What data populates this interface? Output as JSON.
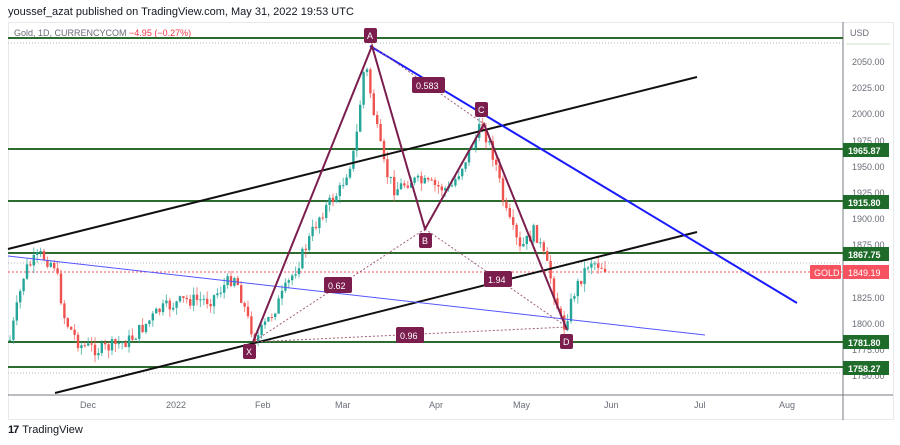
{
  "header": {
    "published": "youssef_azat published on TradingView.com, May 31, 2022 19:53 UTC"
  },
  "legend": {
    "symbol": "Gold, 1D, CURRENCYCOM",
    "change": "−4.95 (−0.27%)"
  },
  "price_axis": {
    "currency": "USD",
    "ticks": [
      "2050.00",
      "2025.00",
      "2000.00",
      "1975.00",
      "1950.00",
      "1925.00",
      "1900.00",
      "1875.00",
      "1825.00",
      "1800.00",
      "1775.00",
      "1750.00"
    ]
  },
  "time_axis": {
    "ticks": [
      "Dec",
      "2022",
      "Feb",
      "Mar",
      "Apr",
      "May",
      "Jun",
      "Jul",
      "Aug"
    ]
  },
  "price_labels": {
    "level1": "1965.87",
    "level2": "1915.80",
    "level3": "1867.75",
    "level4": "1781.80",
    "level5": "1758.27",
    "current_symbol": "GOLD",
    "current_price": "1849.19"
  },
  "pattern": {
    "points": [
      "X",
      "A",
      "B",
      "C",
      "D"
    ],
    "ratios": [
      "0.583",
      "0.62",
      "1.94",
      "0.96"
    ]
  },
  "colors": {
    "up": "#26a69a",
    "down": "#ef5350",
    "support": "#2e6b2e",
    "pattern": "#7b1e4e",
    "channel": "#111111",
    "trend": "#1a1aff",
    "current": "#f7525f"
  },
  "footer": {
    "brand": "TradingView"
  },
  "chart_data": {
    "type": "candlestick",
    "title": "Gold, 1D, CURRENCYCOM",
    "xlabel": "",
    "ylabel": "USD",
    "ylim": [
      1742,
      2075
    ],
    "x_ticks": [
      "Dec",
      "2022",
      "Feb",
      "Mar",
      "Apr",
      "May",
      "Jun",
      "Jul",
      "Aug"
    ],
    "horizontal_levels": [
      2070,
      1965.87,
      1915.8,
      1867.75,
      1781.8,
      1758.27
    ],
    "current_price": 1849.19,
    "change": -4.95,
    "change_pct": -0.27,
    "harmonic_pattern": {
      "X": 1781,
      "A": 2070,
      "B": 1888,
      "C": 1998,
      "D": 1787,
      "ratios": {
        "XB": 0.62,
        "AC": 0.583,
        "BD": 1.94,
        "XD": 0.96
      }
    }
  }
}
